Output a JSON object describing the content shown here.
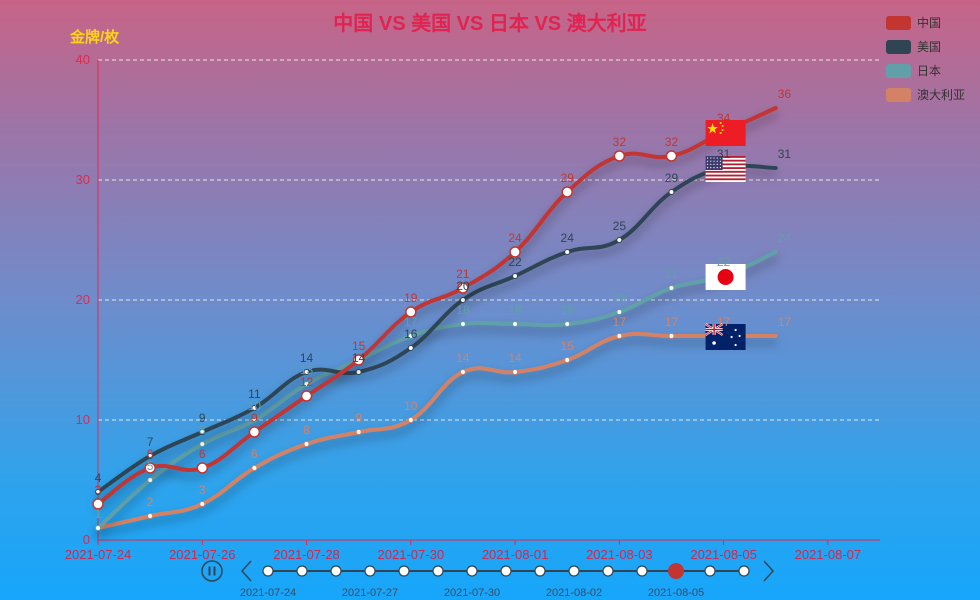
{
  "chart_data": {
    "type": "line",
    "title": "中国 VS 美国 VS 日本 VS 澳大利亚",
    "ylabel": "金牌/枚",
    "ylim": [
      0,
      40
    ],
    "y_ticks": [
      0,
      10,
      20,
      30,
      40
    ],
    "x_ticks": [
      "2021-07-24",
      "2021-07-26",
      "2021-07-28",
      "2021-07-30",
      "2021-08-01",
      "2021-08-03",
      "2021-08-05",
      "2021-08-07"
    ],
    "x": [
      "2021-07-24",
      "2021-07-25",
      "2021-07-26",
      "2021-07-27",
      "2021-07-28",
      "2021-07-29",
      "2021-07-30",
      "2021-07-31",
      "2021-08-01",
      "2021-08-02",
      "2021-08-03",
      "2021-08-04",
      "2021-08-05",
      "2021-08-06"
    ],
    "grid": true,
    "legend_position": "top-right",
    "series": [
      {
        "name": "中国",
        "color": "#c23531",
        "values": [
          3,
          6,
          6,
          9,
          12,
          15,
          19,
          21,
          24,
          29,
          32,
          32,
          34,
          36
        ]
      },
      {
        "name": "美国",
        "color": "#2f4554",
        "values": [
          4,
          7,
          9,
          11,
          14,
          14,
          16,
          20,
          22,
          24,
          25,
          29,
          31,
          31
        ]
      },
      {
        "name": "日本",
        "color": "#61a0a8",
        "values": [
          1,
          5,
          8,
          10,
          13,
          15,
          17,
          18,
          18,
          18,
          19,
          21,
          22,
          24
        ]
      },
      {
        "name": "澳大利亚",
        "color": "#d48265",
        "values": [
          1,
          2,
          3,
          6,
          8,
          9,
          10,
          14,
          14,
          15,
          17,
          17,
          17,
          17
        ]
      }
    ],
    "flags": [
      "china-flag",
      "usa-flag",
      "japan-flag",
      "australia-flag"
    ],
    "timeline": {
      "labels": [
        "2021-07-24",
        "2021-07-27",
        "2021-07-30",
        "2021-08-02",
        "2021-08-05"
      ],
      "count": 15,
      "current": 12
    }
  }
}
